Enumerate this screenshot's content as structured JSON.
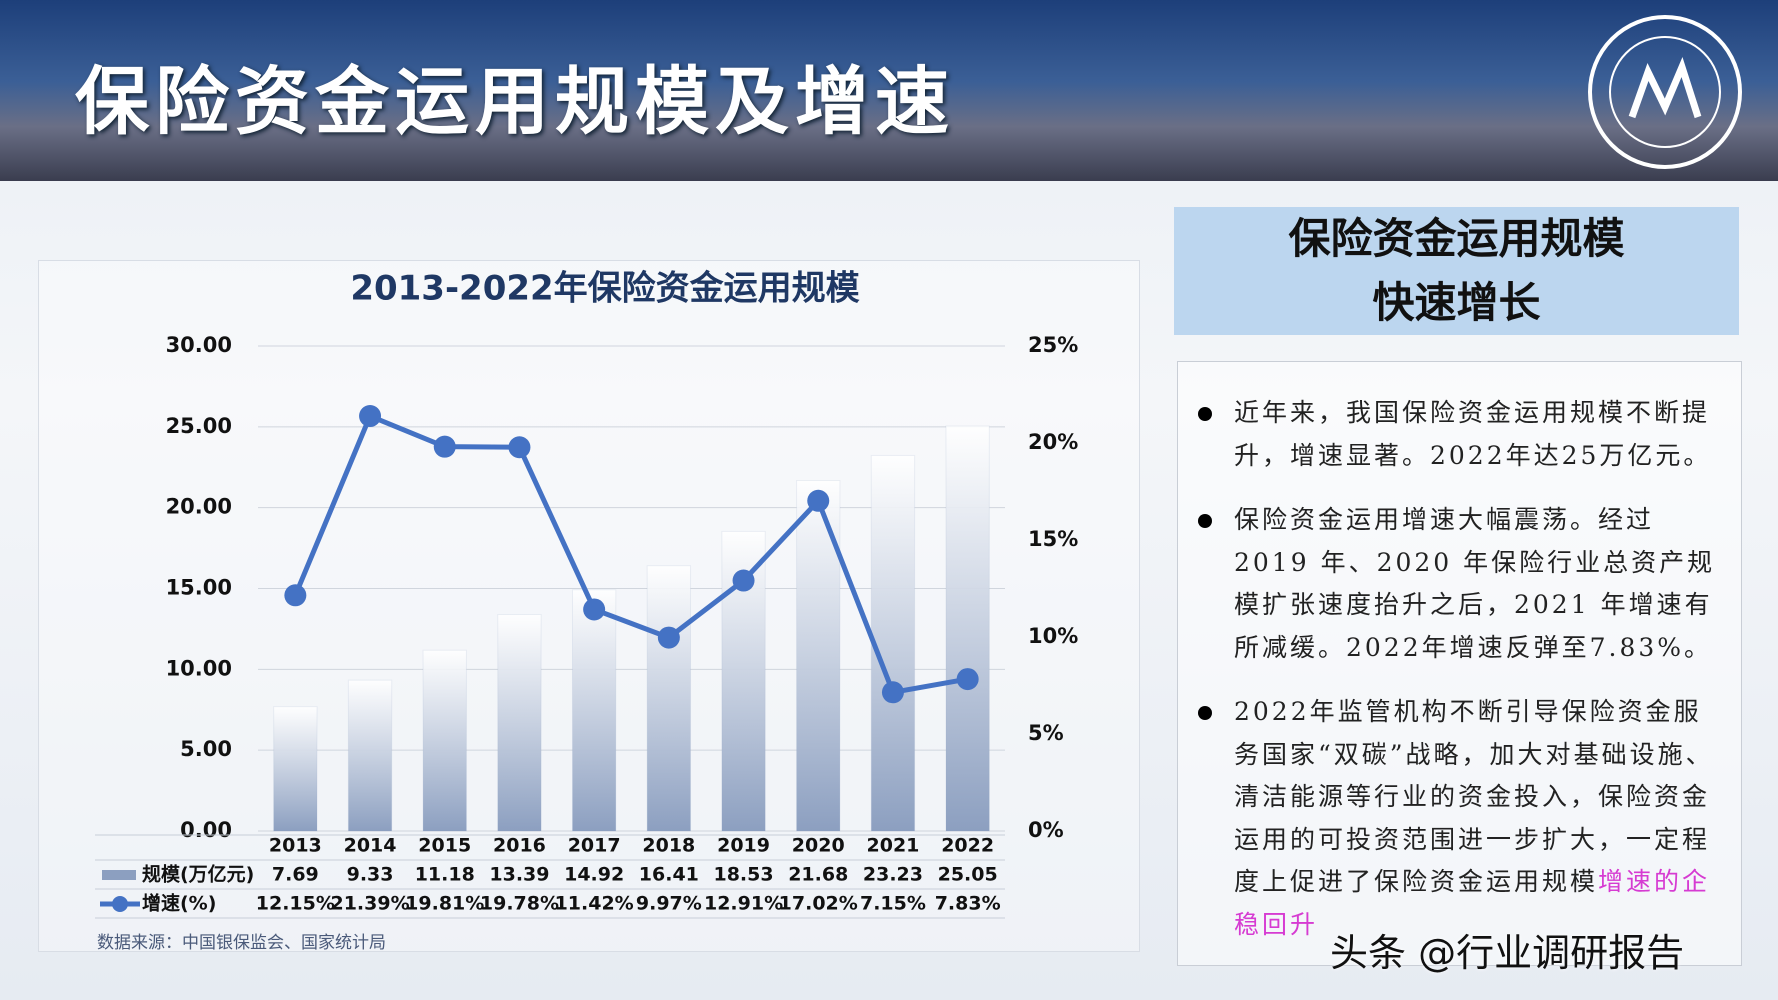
{
  "header": {
    "title": "保险资金运用规模及增速"
  },
  "chart_data": {
    "type": "bar",
    "title": "2013-2022年保险资金运用规模",
    "categories": [
      "2013",
      "2014",
      "2015",
      "2016",
      "2017",
      "2018",
      "2019",
      "2020",
      "2021",
      "2022"
    ],
    "series": [
      {
        "name": "规模(万亿元)",
        "type": "bar",
        "color": "#8c9fc0",
        "values": [
          7.69,
          9.33,
          11.18,
          13.39,
          14.92,
          16.41,
          18.53,
          21.68,
          23.23,
          25.05
        ]
      },
      {
        "name": "增速(%)",
        "type": "line",
        "axis": "y2",
        "color": "#4472c4",
        "values": [
          12.15,
          21.39,
          19.81,
          19.78,
          11.42,
          9.97,
          12.91,
          17.02,
          7.15,
          7.83
        ],
        "value_labels": [
          "12.15%",
          "21.39%",
          "19.81%",
          "19.78%",
          "11.42%",
          "9.97%",
          "12.91%",
          "17.02%",
          "7.15%",
          "7.83%"
        ]
      }
    ],
    "ylim": [
      0,
      30
    ],
    "yticks": [
      {
        "value": 0,
        "label": "0.00"
      },
      {
        "value": 5,
        "label": "5.00"
      },
      {
        "value": 10,
        "label": "10.00"
      },
      {
        "value": 15,
        "label": "15.00"
      },
      {
        "value": 20,
        "label": "20.00"
      },
      {
        "value": 25,
        "label": "25.00"
      },
      {
        "value": 30,
        "label": "30.00"
      }
    ],
    "y2lim": [
      0,
      25
    ],
    "y2ticks": [
      {
        "value": 0,
        "label": "0%"
      },
      {
        "value": 5,
        "label": "5%"
      },
      {
        "value": 10,
        "label": "10%"
      },
      {
        "value": 15,
        "label": "15%"
      },
      {
        "value": 20,
        "label": "20%"
      },
      {
        "value": 25,
        "label": "25%"
      }
    ],
    "grid": true,
    "source": "数据来源：中国银保监会、国家统计局"
  },
  "panel": {
    "heading": [
      "保险资金运用规模",
      "快速增长"
    ],
    "bullets": [
      {
        "text": "近年来，我国保险资金运用规模不断提升，增速显著。2022年达25万亿元。"
      },
      {
        "text": "保险资金运用增速大幅震荡。经过2019 年、2020 年保险行业总资产规模扩张速度抬升之后，2021 年增速有所减缓。2022年增速反弹至7.83%。"
      },
      {
        "text": "2022年监管机构不断引导保险资金服务国家“双碳”战略，加大对基础设施、清洁能源等行业的资金投入，保险资金运用的可投资范围进一步扩大，一定程度上促进了保险资金运用规模",
        "highlight": "增速的企稳回升"
      }
    ]
  },
  "watermark": "头条 @行业调研报告"
}
